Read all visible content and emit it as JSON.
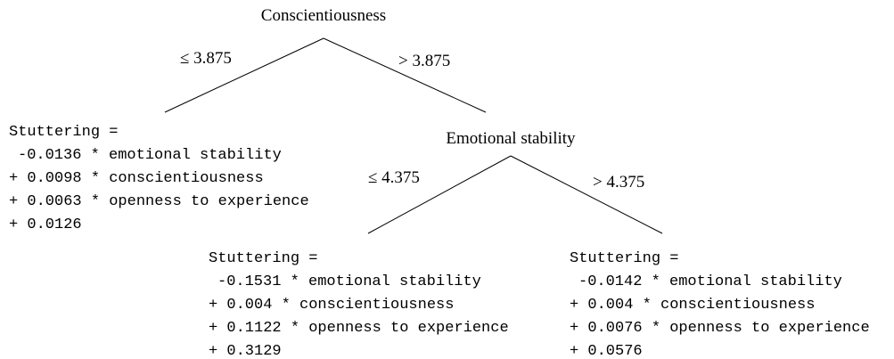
{
  "nodes": [
    {
      "label": "Conscientiousness"
    },
    {
      "label": "Emotional stability"
    }
  ],
  "edges": [
    {
      "label": "≤ 3.875"
    },
    {
      "label": "> 3.875"
    },
    {
      "label": "≤ 4.375"
    },
    {
      "label": "> 4.375"
    }
  ],
  "leaves": [
    {
      "lines": [
        "Stuttering =",
        "-0.0136 * emotional stability",
        "+ 0.0098 * conscientiousness",
        "+ 0.0063 * openness to experience",
        "+ 0.0126"
      ]
    },
    {
      "lines": [
        "Stuttering =",
        "-0.1531 * emotional stability",
        "+ 0.004 * conscientiousness",
        "+ 0.1122 * openness to experience",
        "+ 0.3129"
      ]
    },
    {
      "lines": [
        "Stuttering =",
        "-0.0142 * emotional stability",
        "+ 0.004 * conscientiousness",
        "+ 0.0076 * openness to experience",
        "+ 0.0576"
      ]
    }
  ]
}
